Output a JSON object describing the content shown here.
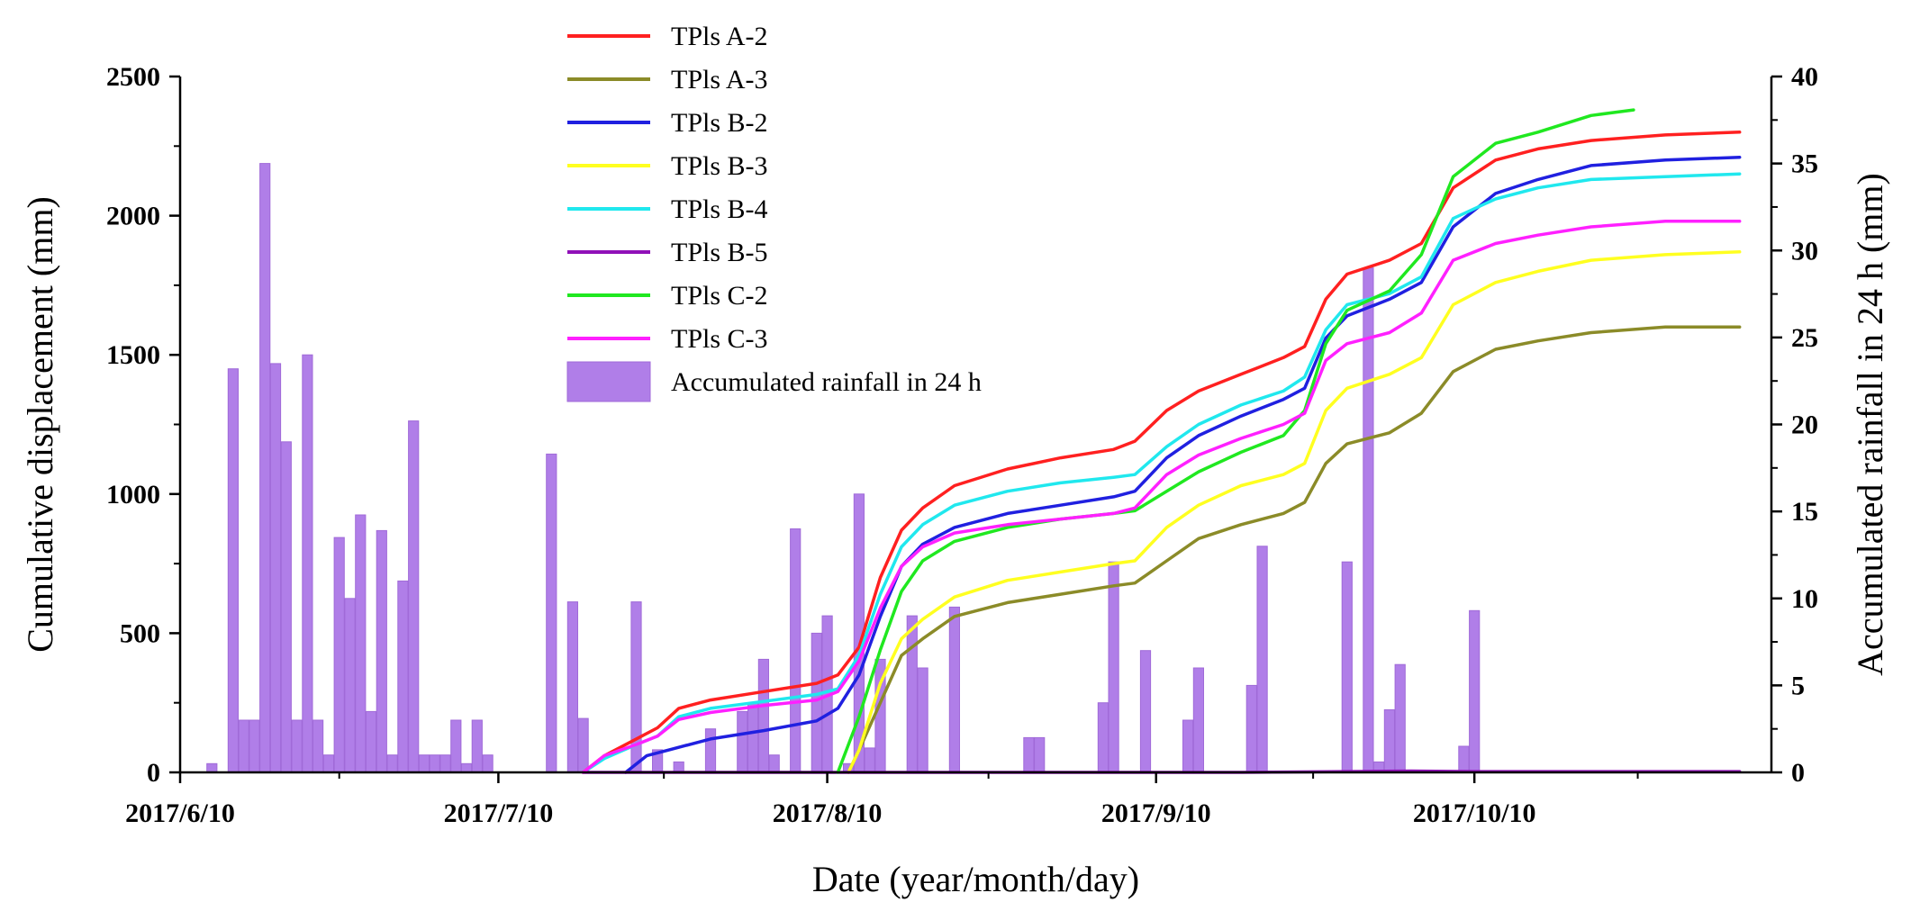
{
  "chart_data": {
    "type": "line+bar",
    "x_start_date": "2017-06-10",
    "x_end_day": 150,
    "xlabel": "Date (year/month/day)",
    "ylabel_left": "Cumulative displacement (mm)",
    "ylabel_right": "Accumulated rainfall in 24 h (mm)",
    "ylim_left": [
      0,
      2500
    ],
    "ylim_right": [
      0,
      40
    ],
    "x_ticks": [
      {
        "day": 0,
        "label": "2017/6/10"
      },
      {
        "day": 30,
        "label": "2017/7/10"
      },
      {
        "day": 61,
        "label": "2017/8/10"
      },
      {
        "day": 92,
        "label": "2017/9/10"
      },
      {
        "day": 122,
        "label": "2017/10/10"
      }
    ],
    "y_left_ticks": [
      0,
      500,
      1000,
      1500,
      2000,
      2500
    ],
    "y_right_ticks": [
      0,
      5,
      10,
      15,
      20,
      25,
      30,
      35,
      40
    ],
    "legend_position": "top-center",
    "series": [
      {
        "name": "TPls A-2",
        "color": "#ff2020",
        "points": [
          [
            38,
            0
          ],
          [
            40,
            60
          ],
          [
            43,
            120
          ],
          [
            45,
            160
          ],
          [
            47,
            230
          ],
          [
            50,
            260
          ],
          [
            55,
            290
          ],
          [
            60,
            320
          ],
          [
            62,
            350
          ],
          [
            64,
            450
          ],
          [
            66,
            700
          ],
          [
            68,
            870
          ],
          [
            70,
            950
          ],
          [
            73,
            1030
          ],
          [
            78,
            1090
          ],
          [
            83,
            1130
          ],
          [
            88,
            1160
          ],
          [
            90,
            1190
          ],
          [
            93,
            1300
          ],
          [
            96,
            1370
          ],
          [
            100,
            1430
          ],
          [
            104,
            1490
          ],
          [
            106,
            1530
          ],
          [
            108,
            1700
          ],
          [
            110,
            1790
          ],
          [
            114,
            1840
          ],
          [
            117,
            1900
          ],
          [
            120,
            2100
          ],
          [
            124,
            2200
          ],
          [
            128,
            2240
          ],
          [
            133,
            2270
          ],
          [
            140,
            2290
          ],
          [
            147,
            2300
          ]
        ]
      },
      {
        "name": "TPls A-3",
        "color": "#8b8b28",
        "points": [
          [
            63,
            0
          ],
          [
            64,
            80
          ],
          [
            66,
            250
          ],
          [
            68,
            420
          ],
          [
            70,
            480
          ],
          [
            73,
            560
          ],
          [
            78,
            610
          ],
          [
            83,
            640
          ],
          [
            88,
            670
          ],
          [
            90,
            680
          ],
          [
            93,
            760
          ],
          [
            96,
            840
          ],
          [
            100,
            890
          ],
          [
            104,
            930
          ],
          [
            106,
            970
          ],
          [
            108,
            1110
          ],
          [
            110,
            1180
          ],
          [
            114,
            1220
          ],
          [
            117,
            1290
          ],
          [
            120,
            1440
          ],
          [
            124,
            1520
          ],
          [
            128,
            1550
          ],
          [
            133,
            1580
          ],
          [
            140,
            1600
          ],
          [
            147,
            1600
          ]
        ]
      },
      {
        "name": "TPls B-2",
        "color": "#2020e0",
        "points": [
          [
            42,
            0
          ],
          [
            44,
            60
          ],
          [
            46,
            80
          ],
          [
            50,
            120
          ],
          [
            55,
            150
          ],
          [
            60,
            185
          ],
          [
            62,
            230
          ],
          [
            64,
            350
          ],
          [
            66,
            560
          ],
          [
            68,
            740
          ],
          [
            70,
            820
          ],
          [
            73,
            880
          ],
          [
            78,
            930
          ],
          [
            83,
            960
          ],
          [
            88,
            990
          ],
          [
            90,
            1010
          ],
          [
            93,
            1130
          ],
          [
            96,
            1210
          ],
          [
            100,
            1280
          ],
          [
            104,
            1340
          ],
          [
            106,
            1380
          ],
          [
            108,
            1560
          ],
          [
            110,
            1640
          ],
          [
            114,
            1700
          ],
          [
            117,
            1760
          ],
          [
            120,
            1960
          ],
          [
            124,
            2080
          ],
          [
            128,
            2130
          ],
          [
            133,
            2180
          ],
          [
            140,
            2200
          ],
          [
            147,
            2210
          ]
        ]
      },
      {
        "name": "TPls B-3",
        "color": "#ffff20",
        "points": [
          [
            63,
            0
          ],
          [
            64,
            80
          ],
          [
            66,
            320
          ],
          [
            68,
            480
          ],
          [
            70,
            550
          ],
          [
            73,
            630
          ],
          [
            78,
            690
          ],
          [
            83,
            720
          ],
          [
            88,
            750
          ],
          [
            90,
            760
          ],
          [
            93,
            880
          ],
          [
            96,
            960
          ],
          [
            100,
            1030
          ],
          [
            104,
            1070
          ],
          [
            106,
            1110
          ],
          [
            108,
            1300
          ],
          [
            110,
            1380
          ],
          [
            114,
            1430
          ],
          [
            117,
            1490
          ],
          [
            120,
            1680
          ],
          [
            124,
            1760
          ],
          [
            128,
            1800
          ],
          [
            133,
            1840
          ],
          [
            140,
            1860
          ],
          [
            147,
            1870
          ]
        ]
      },
      {
        "name": "TPls B-4",
        "color": "#20e8ee",
        "points": [
          [
            38,
            0
          ],
          [
            40,
            50
          ],
          [
            43,
            100
          ],
          [
            45,
            130
          ],
          [
            47,
            200
          ],
          [
            50,
            230
          ],
          [
            55,
            255
          ],
          [
            60,
            280
          ],
          [
            62,
            300
          ],
          [
            64,
            420
          ],
          [
            66,
            640
          ],
          [
            68,
            810
          ],
          [
            70,
            890
          ],
          [
            73,
            960
          ],
          [
            78,
            1010
          ],
          [
            83,
            1040
          ],
          [
            88,
            1060
          ],
          [
            90,
            1070
          ],
          [
            93,
            1170
          ],
          [
            96,
            1250
          ],
          [
            100,
            1320
          ],
          [
            104,
            1370
          ],
          [
            106,
            1420
          ],
          [
            108,
            1590
          ],
          [
            110,
            1680
          ],
          [
            114,
            1720
          ],
          [
            117,
            1780
          ],
          [
            120,
            1990
          ],
          [
            124,
            2060
          ],
          [
            128,
            2100
          ],
          [
            133,
            2130
          ],
          [
            140,
            2140
          ],
          [
            147,
            2150
          ]
        ]
      },
      {
        "name": "TPls B-5",
        "color": "#9010b8",
        "points": [
          [
            38,
            0
          ],
          [
            70,
            0
          ],
          [
            100,
            0
          ],
          [
            116,
            5
          ],
          [
            122,
            3
          ],
          [
            147,
            3
          ]
        ]
      },
      {
        "name": "TPls C-2",
        "color": "#20e820",
        "points": [
          [
            62,
            0
          ],
          [
            64,
            200
          ],
          [
            66,
            440
          ],
          [
            68,
            650
          ],
          [
            70,
            760
          ],
          [
            73,
            830
          ],
          [
            78,
            880
          ],
          [
            83,
            910
          ],
          [
            88,
            930
          ],
          [
            90,
            940
          ],
          [
            93,
            1010
          ],
          [
            96,
            1080
          ],
          [
            100,
            1150
          ],
          [
            104,
            1210
          ],
          [
            106,
            1300
          ],
          [
            108,
            1540
          ],
          [
            110,
            1660
          ],
          [
            114,
            1730
          ],
          [
            117,
            1860
          ],
          [
            120,
            2140
          ],
          [
            124,
            2260
          ],
          [
            128,
            2300
          ],
          [
            133,
            2360
          ],
          [
            137,
            2380
          ]
        ]
      },
      {
        "name": "TPls C-3",
        "color": "#ff20ff",
        "points": [
          [
            38,
            0
          ],
          [
            40,
            60
          ],
          [
            43,
            100
          ],
          [
            45,
            130
          ],
          [
            47,
            190
          ],
          [
            50,
            215
          ],
          [
            55,
            240
          ],
          [
            60,
            260
          ],
          [
            62,
            290
          ],
          [
            64,
            400
          ],
          [
            66,
            590
          ],
          [
            68,
            740
          ],
          [
            70,
            810
          ],
          [
            73,
            860
          ],
          [
            78,
            890
          ],
          [
            83,
            910
          ],
          [
            88,
            930
          ],
          [
            90,
            950
          ],
          [
            93,
            1070
          ],
          [
            96,
            1140
          ],
          [
            100,
            1200
          ],
          [
            104,
            1250
          ],
          [
            106,
            1290
          ],
          [
            108,
            1480
          ],
          [
            110,
            1540
          ],
          [
            114,
            1580
          ],
          [
            117,
            1650
          ],
          [
            120,
            1840
          ],
          [
            124,
            1900
          ],
          [
            128,
            1930
          ],
          [
            133,
            1960
          ],
          [
            140,
            1980
          ],
          [
            147,
            1980
          ]
        ]
      }
    ],
    "rainfall": {
      "name": "Accumulated rainfall in 24 h",
      "color": "#b07ee8",
      "bars": [
        [
          3,
          0.5
        ],
        [
          5,
          23.2
        ],
        [
          6,
          3
        ],
        [
          7,
          3
        ],
        [
          8,
          35
        ],
        [
          9,
          23.5
        ],
        [
          10,
          19
        ],
        [
          11,
          3
        ],
        [
          12,
          24
        ],
        [
          13,
          3
        ],
        [
          14,
          1
        ],
        [
          15,
          13.5
        ],
        [
          16,
          10
        ],
        [
          17,
          14.8
        ],
        [
          18,
          3.5
        ],
        [
          19,
          13.9
        ],
        [
          20,
          1
        ],
        [
          21,
          11
        ],
        [
          22,
          20.2
        ],
        [
          23,
          1
        ],
        [
          24,
          1
        ],
        [
          25,
          1
        ],
        [
          26,
          3
        ],
        [
          27,
          0.5
        ],
        [
          28,
          3
        ],
        [
          29,
          1
        ],
        [
          35,
          18.3
        ],
        [
          37,
          9.8
        ],
        [
          38,
          3.1
        ],
        [
          43,
          9.8
        ],
        [
          45,
          1.3
        ],
        [
          47,
          0.6
        ],
        [
          50,
          2.5
        ],
        [
          53,
          3.5
        ],
        [
          54,
          4
        ],
        [
          55,
          6.5
        ],
        [
          56,
          1
        ],
        [
          58,
          14
        ],
        [
          60,
          8
        ],
        [
          61,
          9
        ],
        [
          63,
          0.5
        ],
        [
          64,
          16
        ],
        [
          65,
          1.4
        ],
        [
          66,
          6.5
        ],
        [
          69,
          9
        ],
        [
          70,
          6
        ],
        [
          73,
          9.5
        ],
        [
          80,
          2
        ],
        [
          81,
          2
        ],
        [
          87,
          4
        ],
        [
          88,
          12.1
        ],
        [
          91,
          7
        ],
        [
          95,
          3
        ],
        [
          96,
          6
        ],
        [
          101,
          5
        ],
        [
          102,
          13
        ],
        [
          110,
          12.1
        ],
        [
          112,
          29
        ],
        [
          113,
          0.6
        ],
        [
          114,
          3.6
        ],
        [
          115,
          6.2
        ],
        [
          121,
          1.5
        ],
        [
          122,
          9.3
        ]
      ]
    }
  }
}
